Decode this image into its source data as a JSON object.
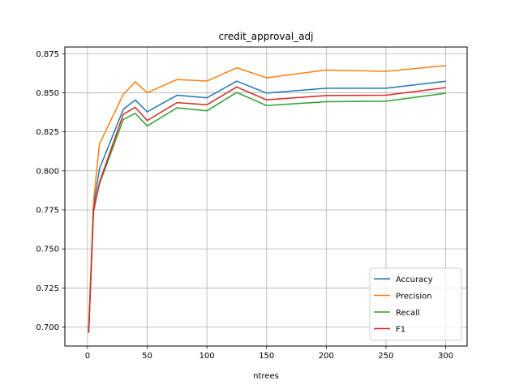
{
  "chart_data": {
    "type": "line",
    "title": "credit_approval_adj",
    "xlabel": "ntrees",
    "ylabel": "",
    "xlim": [
      -18.95,
      317.95
    ],
    "ylim": [
      0.6878,
      0.8793
    ],
    "xticks": [
      0,
      50,
      100,
      150,
      200,
      250,
      300
    ],
    "yticks": [
      0.7,
      0.725,
      0.75,
      0.775,
      0.8,
      0.825,
      0.85,
      0.875
    ],
    "grid": true,
    "legend_position": "lower-right",
    "x": [
      1,
      5,
      10,
      30,
      40,
      50,
      75,
      100,
      125,
      150,
      200,
      250,
      300
    ],
    "series": [
      {
        "name": "Accuracy",
        "color": "#1f77b4",
        "values": [
          0.6963,
          0.7767,
          0.8013,
          0.8394,
          0.8454,
          0.8378,
          0.8484,
          0.8468,
          0.8574,
          0.8498,
          0.8529,
          0.8529,
          0.8574
        ]
      },
      {
        "name": "Precision",
        "color": "#ff7f0e",
        "values": [
          0.699,
          0.7803,
          0.8172,
          0.849,
          0.857,
          0.85,
          0.8585,
          0.8575,
          0.866,
          0.8596,
          0.8646,
          0.8637,
          0.8674
        ]
      },
      {
        "name": "Recall",
        "color": "#2ca02c",
        "values": [
          0.6963,
          0.7749,
          0.7916,
          0.8329,
          0.8368,
          0.8287,
          0.8404,
          0.8384,
          0.8502,
          0.8418,
          0.8443,
          0.8446,
          0.8497
        ]
      },
      {
        "name": "F1",
        "color": "#d62728",
        "values": [
          0.6966,
          0.7736,
          0.7926,
          0.8362,
          0.8407,
          0.8322,
          0.8437,
          0.8423,
          0.8537,
          0.8455,
          0.8482,
          0.8484,
          0.8533
        ]
      }
    ]
  }
}
